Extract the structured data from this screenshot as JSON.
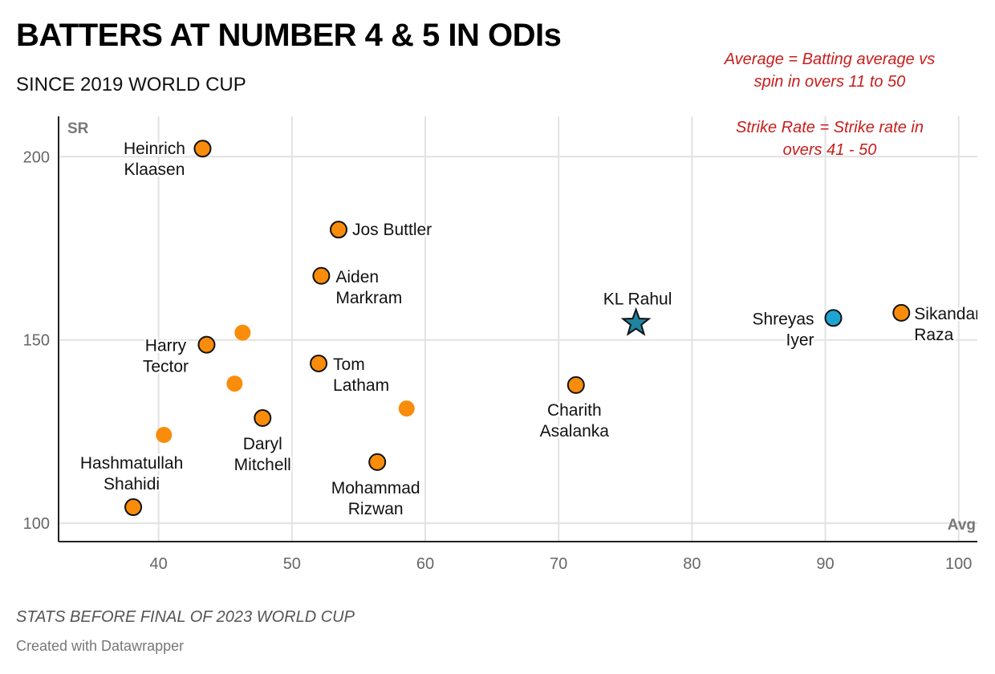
{
  "title": "BATTERS AT NUMBER 4 & 5 IN ODIs",
  "subtitle": "SINCE 2019 WORLD CUP",
  "note": "STATS BEFORE FINAL OF 2023 WORLD CUP",
  "credit": "Created with Datawrapper",
  "chart_data": {
    "type": "scatter",
    "title": "BATTERS AT NUMBER 4 & 5 IN ODIs",
    "subtitle": "SINCE 2019 WORLD CUP",
    "xlabel": "Avg",
    "ylabel": "SR",
    "xlim": [
      32.5,
      101.4
    ],
    "ylim": [
      95,
      211
    ],
    "xticks": [
      40,
      50,
      60,
      70,
      80,
      90,
      100
    ],
    "yticks": [
      100,
      150,
      200
    ],
    "grid": true,
    "annotations": [
      [
        "Average = Batting average vs",
        "spin in overs 11 to 50"
      ],
      [
        "Strike Rate = Strike rate in",
        "overs 41 - 50"
      ]
    ],
    "colors": {
      "default": "#f98c0a",
      "highlight": "#1ea4d0",
      "star": "#1f84a0",
      "annotation": "#c71e1d"
    },
    "points": [
      {
        "label": [
          "Heinrich",
          "Klaasen"
        ],
        "x": 43.3,
        "y": 202.2,
        "marker": "circle",
        "color": "default"
      },
      {
        "label": [
          "Jos Buttler"
        ],
        "x": 53.5,
        "y": 180.1,
        "marker": "circle",
        "color": "default"
      },
      {
        "label": [
          "Aiden",
          "Markram"
        ],
        "x": 52.2,
        "y": 167.5,
        "marker": "circle",
        "color": "default"
      },
      {
        "label": [
          "Harry",
          "Tector"
        ],
        "x": 43.6,
        "y": 148.7,
        "marker": "circle",
        "color": "default"
      },
      {
        "label": [],
        "x": 46.3,
        "y": 152.0,
        "marker": "dot",
        "color": "default"
      },
      {
        "label": [],
        "x": 45.7,
        "y": 138.1,
        "marker": "dot",
        "color": "default"
      },
      {
        "label": [
          "Tom",
          "Latham"
        ],
        "x": 52.0,
        "y": 143.6,
        "marker": "circle",
        "color": "default"
      },
      {
        "label": [],
        "x": 58.6,
        "y": 131.3,
        "marker": "dot",
        "color": "default"
      },
      {
        "label": [
          "Daryl",
          "Mitchell"
        ],
        "x": 47.8,
        "y": 128.7,
        "marker": "circle",
        "color": "default"
      },
      {
        "label": [],
        "x": 40.4,
        "y": 124.1,
        "marker": "dot",
        "color": "default"
      },
      {
        "label": [
          "Hashmatullah",
          "Shahidi"
        ],
        "x": 38.1,
        "y": 104.4,
        "marker": "circle",
        "color": "default"
      },
      {
        "label": [
          "Mohammad",
          "Rizwan"
        ],
        "x": 56.4,
        "y": 116.7,
        "marker": "circle",
        "color": "default"
      },
      {
        "label": [
          "Charith",
          "Asalanka"
        ],
        "x": 71.3,
        "y": 137.7,
        "marker": "circle",
        "color": "default"
      },
      {
        "label": [
          "KL Rahul"
        ],
        "x": 75.8,
        "y": 154.6,
        "marker": "star",
        "color": "star"
      },
      {
        "label": [
          "Shreyas",
          "Iyer"
        ],
        "x": 90.6,
        "y": 156.0,
        "marker": "circle",
        "color": "highlight"
      },
      {
        "label": [
          "Sikandar",
          "Raza"
        ],
        "x": 95.7,
        "y": 157.4,
        "marker": "circle",
        "color": "default"
      }
    ]
  }
}
